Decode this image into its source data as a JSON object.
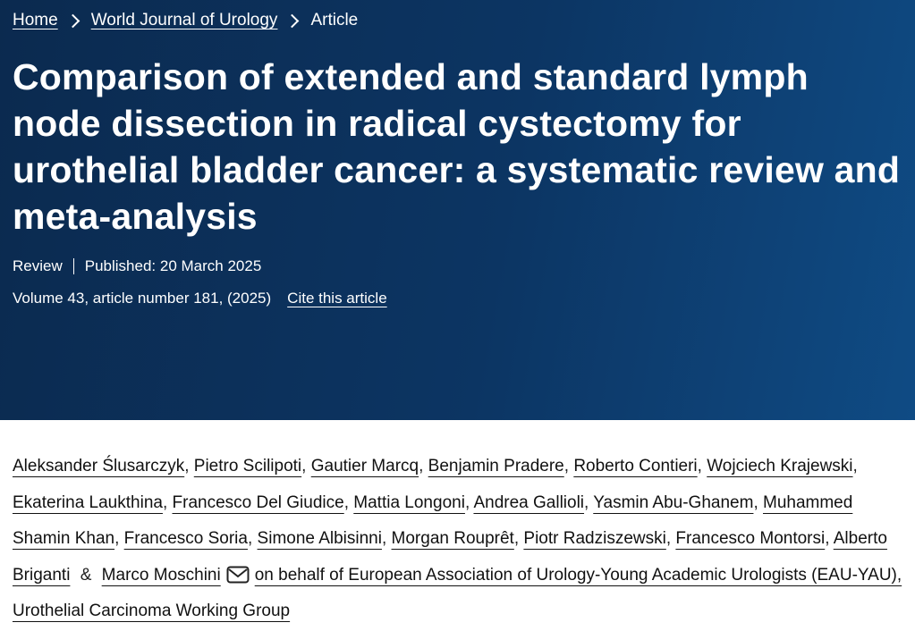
{
  "breadcrumb": [
    "Home",
    "World Journal of Urology",
    "Article"
  ],
  "title": "Comparison of extended and standard lymph node dissection in radical cystectomy for urothelial bladder cancer: a systematic review and meta-analysis",
  "article_type": "Review",
  "published": "Published: 20 March 2025",
  "citation": "Volume 43, article number 181, (2025)",
  "cite_link": "Cite this article",
  "authors": [
    "Aleksander Ślusarczyk",
    "Pietro Scilipoti",
    "Gautier Marcq",
    "Benjamin Pradere",
    "Roberto Contieri",
    "Wojciech Krajewski",
    "Ekaterina Laukthina",
    "Francesco Del Giudice",
    "Mattia Longoni",
    "Andrea Gallioli",
    "Yasmin Abu-Ghanem",
    "Muhammed Shamin Khan",
    "Francesco Soria",
    "Simone Albisinni",
    "Morgan Rouprêt",
    "Piotr Radziszewski",
    "Francesco Montorsi",
    "Alberto Briganti",
    "Marco Moschini"
  ],
  "author_separator": ",",
  "last_separator": "&",
  "group": "on behalf of European Association of Urology-Young Academic Urologists (EAU-YAU), Urothelial Carcinoma Working Group"
}
